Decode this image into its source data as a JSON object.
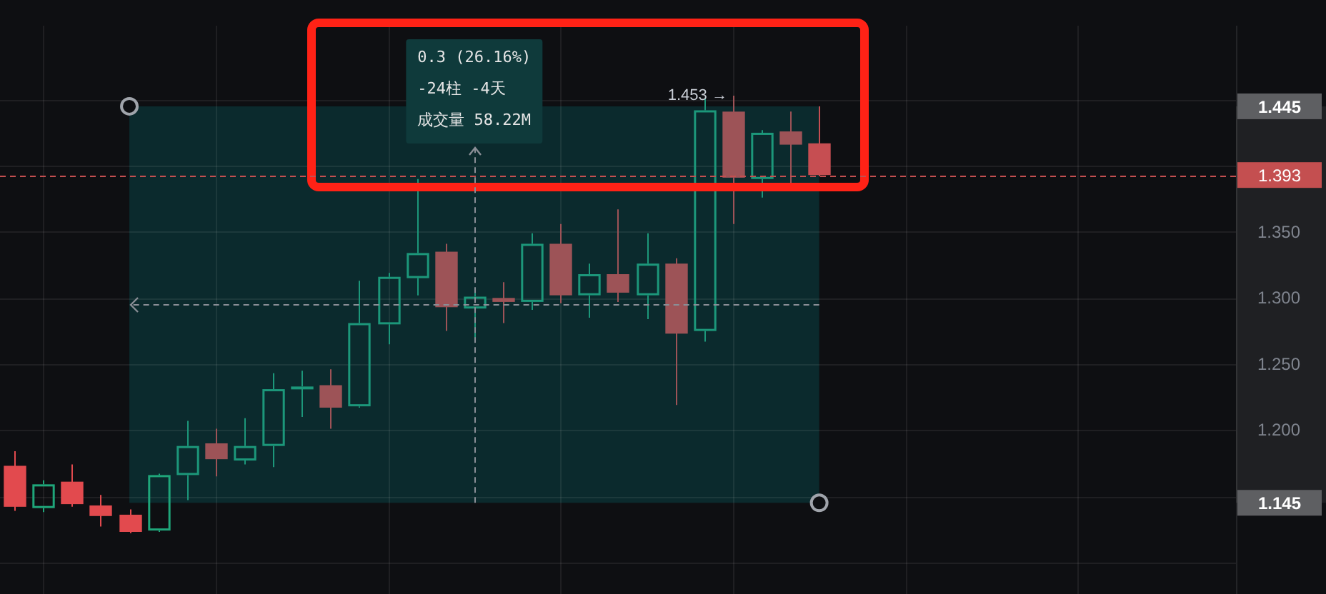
{
  "chart_data": {
    "type": "candlestick",
    "categories": [
      null,
      null,
      null,
      null,
      null,
      null,
      null,
      null,
      null,
      null,
      null,
      null,
      null,
      null,
      null,
      null,
      null,
      null,
      null,
      null,
      null,
      null,
      null,
      null,
      null,
      null,
      null,
      null,
      null,
      null,
      null,
      null,
      null,
      null,
      null,
      null,
      null,
      null,
      null,
      null,
      null,
      null,
      null
    ],
    "ohlc": [
      [
        1.173,
        1.184,
        1.139,
        1.142
      ],
      [
        1.141,
        1.162,
        1.138,
        1.159
      ],
      [
        1.161,
        1.174,
        1.142,
        1.144
      ],
      [
        1.143,
        1.151,
        1.127,
        1.135
      ],
      [
        1.136,
        1.14,
        1.122,
        1.123
      ],
      [
        1.124,
        1.167,
        1.123,
        1.166
      ],
      [
        1.166,
        1.207,
        1.147,
        1.188
      ],
      [
        1.19,
        1.201,
        1.165,
        1.178
      ],
      [
        1.177,
        1.209,
        1.174,
        1.188
      ],
      [
        1.188,
        1.243,
        1.172,
        1.231
      ],
      [
        1.231,
        1.245,
        1.21,
        1.233
      ],
      [
        1.234,
        1.246,
        1.201,
        1.217
      ],
      [
        1.218,
        1.313,
        1.217,
        1.281
      ],
      [
        1.28,
        1.319,
        1.265,
        1.316
      ],
      [
        1.315,
        1.39,
        1.302,
        1.334
      ],
      [
        1.335,
        1.341,
        1.275,
        1.293
      ],
      [
        1.292,
        1.306,
        1.268,
        1.301
      ],
      [
        1.3,
        1.312,
        1.281,
        1.297
      ],
      [
        1.297,
        1.349,
        1.291,
        1.341
      ],
      [
        1.341,
        1.356,
        1.296,
        1.302
      ],
      [
        1.302,
        1.326,
        1.285,
        1.318
      ],
      [
        1.318,
        1.367,
        1.297,
        1.304
      ],
      [
        1.302,
        1.349,
        1.284,
        1.326
      ],
      [
        1.326,
        1.33,
        1.219,
        1.273
      ],
      [
        1.275,
        1.451,
        1.267,
        1.442
      ],
      [
        1.441,
        1.453,
        1.356,
        1.391
      ],
      [
        1.39,
        1.427,
        1.376,
        1.425
      ],
      [
        1.426,
        1.441,
        1.385,
        1.416
      ],
      [
        1.417,
        1.445,
        1.392,
        1.393
      ],
      null,
      null,
      null,
      null,
      null,
      null,
      null,
      null,
      null,
      null,
      null,
      null,
      null,
      null
    ],
    "colors": [
      "#e24a4e",
      "#1fa67a",
      "#e24a4e",
      "#e24a4e",
      "#e24a4e",
      "#1fa67a",
      "#1c977a",
      "#9d5357",
      "#1c977a",
      "#1c977a",
      "#1c977a",
      "#9d5357",
      "#1c977a",
      "#1c977a",
      "#1c977a",
      "#9d5357",
      "#1c977a",
      "#9d5357",
      "#1c977a",
      "#9d5357",
      "#1c977a",
      "#9d5357",
      "#1c977a",
      "#9d5357",
      "#1c977a",
      "#9d5357",
      "#1c977a",
      "#9d5357",
      "#c64e52",
      null,
      null,
      null,
      null,
      null,
      null,
      null,
      null,
      null,
      null,
      null,
      null,
      null,
      null
    ],
    "ylim": [
      1.076,
      1.506
    ],
    "yticks": [
      {
        "value": 1.1,
        "label": null
      },
      {
        "value": 1.15,
        "label": null
      },
      {
        "value": 1.2,
        "label": "1.200"
      },
      {
        "value": 1.25,
        "label": "1.250"
      },
      {
        "value": 1.3,
        "label": "1.300"
      },
      {
        "value": 1.35,
        "label": "1.350"
      },
      {
        "value": 1.4,
        "label": null
      },
      {
        "value": 1.45,
        "label": null
      }
    ],
    "tick_labels": "y",
    "grid": true,
    "ref_lines": [
      {
        "axis": "y",
        "value": 1.393,
        "label": "1.393",
        "color": "#c44f50",
        "line_style": "dashed"
      },
      {
        "axis": "y",
        "value": 1.295,
        "color": "#8a8e96",
        "line_style": "dashed"
      }
    ],
    "bands": [
      {
        "axis": "y",
        "from": 1.145,
        "to": 1.445,
        "label": "0.3 (26.16%)",
        "color": "#0b2a2d"
      }
    ],
    "annotations": [
      "1.453 →",
      "1.445",
      "1.145",
      "-24柱 -4天",
      "成交量 58.22M"
    ]
  }
}
